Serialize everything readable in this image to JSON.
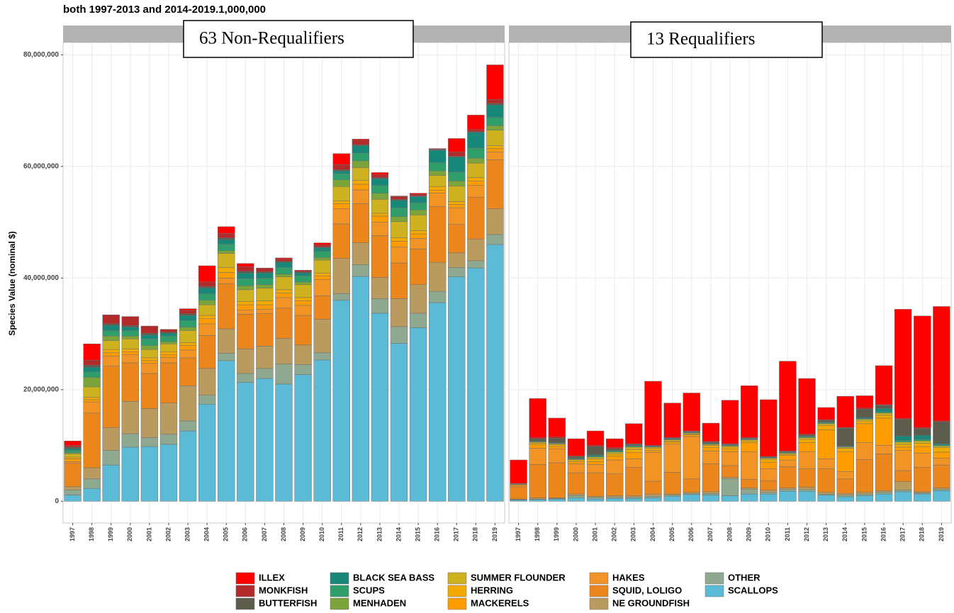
{
  "chart_data": {
    "type": "bar",
    "stacked": true,
    "title": "both 1997-2013 and 2014-2019.1,000,000",
    "y_label": "Species Value (nominal $)",
    "panels": [
      "63 Non-Requalifiers",
      "13 Requalifiers"
    ],
    "categories": [
      "1997",
      "1998",
      "1999",
      "2000",
      "2001",
      "2002",
      "2003",
      "2004",
      "2005",
      "2006",
      "2007",
      "2008",
      "2009",
      "2010",
      "2011",
      "2012",
      "2013",
      "2014",
      "2015",
      "2016",
      "2017",
      "2018",
      "2019"
    ],
    "ylim": [
      -3900000,
      82200000
    ],
    "yticks": [
      0,
      {
        "value": 20000000,
        "label": "20,000,000"
      },
      {
        "value": 40000000,
        "label": "40,000,000"
      },
      {
        "value": 60000000,
        "label": "60,000,000"
      },
      {
        "value": 80000000,
        "label": "80,000,000"
      }
    ],
    "grid": true,
    "legend": "bottom",
    "series": [
      {
        "name": "ILLEX",
        "color": "#ff0000",
        "values": [
          [
            800000,
            2900000,
            0,
            0,
            0,
            0,
            300000,
            2900000,
            1200000,
            600000,
            0,
            200000,
            0,
            400000,
            2000000,
            200000,
            400000,
            100000,
            200000,
            100000,
            2400000,
            2600000,
            6200000
          ],
          [
            4200000,
            7000000,
            3400000,
            3100000,
            2600000,
            1600000,
            3600000,
            11500000,
            6200000,
            6800000,
            3300000,
            7800000,
            9300000,
            10200000,
            16100000,
            10000000,
            2200000,
            5600000,
            2200000,
            7000000,
            19600000,
            20000000,
            20500000
          ]
        ]
      },
      {
        "name": "MONKFISH",
        "color": "#b22a2a",
        "values": [
          [
            300000,
            900000,
            1600000,
            1600000,
            1300000,
            500000,
            600000,
            800000,
            800000,
            800000,
            700000,
            400000,
            300000,
            300000,
            900000,
            800000,
            500000,
            500000,
            300000,
            100000,
            800000,
            400000,
            700000
          ],
          [
            0,
            200000,
            200000,
            100000,
            200000,
            200000,
            100000,
            0,
            100000,
            100000,
            100000,
            100000,
            100000,
            0,
            100000,
            100000,
            100000,
            100000,
            200000,
            100000,
            100000,
            200000,
            200000
          ]
        ]
      },
      {
        "name": "BUTTERFISH",
        "color": "#5c5c4c",
        "values": [
          [
            300000,
            400000,
            300000,
            300000,
            300000,
            200000,
            300000,
            300000,
            300000,
            300000,
            200000,
            200000,
            200000,
            200000,
            200000,
            200000,
            200000,
            200000,
            100000,
            100000,
            100000,
            100000,
            300000
          ],
          [
            100000,
            400000,
            800000,
            300000,
            1500000,
            300000,
            200000,
            100000,
            100000,
            100000,
            200000,
            100000,
            100000,
            100000,
            100000,
            200000,
            300000,
            3200000,
            1500000,
            600000,
            3000000,
            1200000,
            3900000
          ]
        ]
      },
      {
        "name": "BLACK SEA BASS",
        "color": "#17877a",
        "values": [
          [
            300000,
            800000,
            900000,
            600000,
            700000,
            500000,
            900000,
            1000000,
            800000,
            1000000,
            900000,
            900000,
            500000,
            600000,
            500000,
            1300000,
            1200000,
            1300000,
            1100000,
            2200000,
            2700000,
            2800000,
            2200000
          ],
          [
            0,
            100000,
            100000,
            100000,
            200000,
            100000,
            100000,
            100000,
            100000,
            100000,
            100000,
            100000,
            100000,
            100000,
            100000,
            100000,
            100000,
            100000,
            200000,
            600000,
            800000,
            700000,
            200000
          ]
        ]
      },
      {
        "name": "SCUPS",
        "color": "#2f9e6a",
        "values": [
          [
            400000,
            1000000,
            1000000,
            1000000,
            1200000,
            1000000,
            1200000,
            1200000,
            1200000,
            1300000,
            1200000,
            1200000,
            1100000,
            1100000,
            1100000,
            1400000,
            1400000,
            1600000,
            1300000,
            1500000,
            1600000,
            1800000,
            1500000
          ],
          [
            0,
            100000,
            100000,
            100000,
            200000,
            200000,
            200000,
            100000,
            100000,
            100000,
            100000,
            100000,
            100000,
            100000,
            100000,
            200000,
            200000,
            100000,
            100000,
            200000,
            300000,
            300000,
            200000
          ]
        ]
      },
      {
        "name": "MENHADEN",
        "color": "#7ba43a",
        "values": [
          [
            200000,
            1700000,
            800000,
            500000,
            700000,
            400000,
            600000,
            800000,
            500000,
            700000,
            600000,
            500000,
            500000,
            500000,
            1200000,
            1200000,
            1100000,
            900000,
            900000,
            800000,
            900000,
            900000,
            800000
          ],
          [
            0,
            0,
            0,
            0,
            0,
            0,
            0,
            0,
            0,
            0,
            0,
            0,
            0,
            0,
            0,
            0,
            0,
            0,
            0,
            0,
            0,
            0,
            0
          ]
        ]
      },
      {
        "name": "SUMMER FLOUNDER",
        "color": "#cdb11f",
        "values": [
          [
            600000,
            1900000,
            1600000,
            1800000,
            1500000,
            1400000,
            2200000,
            1900000,
            2500000,
            2100000,
            2300000,
            2300000,
            2300000,
            2300000,
            2600000,
            2300000,
            2500000,
            2900000,
            2800000,
            2000000,
            2800000,
            2600000,
            2800000
          ],
          [
            0,
            200000,
            200000,
            100000,
            300000,
            300000,
            400000,
            200000,
            200000,
            200000,
            200000,
            200000,
            200000,
            200000,
            200000,
            300000,
            300000,
            200000,
            300000,
            400000,
            400000,
            400000,
            300000
          ]
        ]
      },
      {
        "name": "HERRING",
        "color": "#f2a900",
        "values": [
          [
            300000,
            400000,
            600000,
            500000,
            500000,
            500000,
            500000,
            600000,
            900000,
            600000,
            700000,
            600000,
            600000,
            500000,
            500000,
            700000,
            500000,
            600000,
            600000,
            700000,
            500000,
            600000,
            500000
          ],
          [
            100000,
            300000,
            300000,
            300000,
            500000,
            400000,
            600000,
            400000,
            200000,
            100000,
            400000,
            300000,
            300000,
            500000,
            200000,
            600000,
            800000,
            600000,
            500000,
            500000,
            500000,
            600000,
            800000
          ]
        ]
      },
      {
        "name": "MACKERELS",
        "color": "#ff9d00",
        "values": [
          [
            500000,
            400000,
            600000,
            500000,
            500000,
            500000,
            800000,
            900000,
            1000000,
            900000,
            800000,
            800000,
            800000,
            700000,
            900000,
            1000000,
            1100000,
            1000000,
            800000,
            500000,
            600000,
            800000,
            600000
          ],
          [
            100000,
            600000,
            400000,
            400000,
            500000,
            700000,
            1100000,
            300000,
            300000,
            300000,
            600000,
            500000,
            1600000,
            1200000,
            800000,
            1600000,
            5200000,
            3600000,
            3400000,
            4900000,
            600000,
            1200000,
            1100000
          ]
        ]
      },
      {
        "name": "HAKES",
        "color": "#f29425",
        "values": [
          [
            300000,
            2000000,
            1800000,
            1500000,
            1800000,
            1000000,
            1400000,
            2100000,
            1000000,
            800000,
            800000,
            1900000,
            1800000,
            2900000,
            2700000,
            2500000,
            2400000,
            2900000,
            1900000,
            2400000,
            3000000,
            2100000,
            1400000
          ],
          [
            300000,
            2900000,
            2500000,
            1600000,
            1500000,
            2500000,
            1500000,
            5200000,
            5100000,
            7600000,
            2300000,
            2500000,
            5000000,
            2100000,
            1200000,
            3100000,
            1800000,
            1300000,
            3000000,
            1500000,
            3600000,
            2500000,
            1200000
          ]
        ]
      },
      {
        "name": "SQUID, LOLIGO",
        "color": "#ea861b",
        "values": [
          [
            4200000,
            9800000,
            11000000,
            6900000,
            6300000,
            7200000,
            5000000,
            5900000,
            8100000,
            6200000,
            5800000,
            5400000,
            5300000,
            4200000,
            6200000,
            7000000,
            7500000,
            6400000,
            6400000,
            10000000,
            5100000,
            7500000,
            8800000
          ],
          [
            2200000,
            6000000,
            6300000,
            3800000,
            4200000,
            3900000,
            5100000,
            2300000,
            3900000,
            2400000,
            5000000,
            2100000,
            1500000,
            1700000,
            3800000,
            3300000,
            4200000,
            2600000,
            5900000,
            6600000,
            2000000,
            4400000,
            4100000
          ]
        ]
      },
      {
        "name": "NE GROUNDFISH",
        "color": "#b99b5f",
        "values": [
          [
            600000,
            2000000,
            4100000,
            5800000,
            5200000,
            5600000,
            6300000,
            4800000,
            4400000,
            4400000,
            4000000,
            4600000,
            3500000,
            6000000,
            6300000,
            3900000,
            3800000,
            5000000,
            5100000,
            5200000,
            2600000,
            3900000,
            4600000
          ],
          [
            100000,
            200000,
            100000,
            300000,
            200000,
            300000,
            300000,
            400000,
            200000,
            200000,
            300000,
            300000,
            300000,
            400000,
            300000,
            400000,
            300000,
            300000,
            300000,
            300000,
            1500000,
            200000,
            300000
          ]
        ]
      },
      {
        "name": "OTHER",
        "color": "#8fa890",
        "values": [
          [
            900000,
            1700000,
            2600000,
            2400000,
            1600000,
            1800000,
            1800000,
            1600000,
            1300000,
            1600000,
            1800000,
            3600000,
            1800000,
            1300000,
            1200000,
            2100000,
            2600000,
            3000000,
            2600000,
            2000000,
            1700000,
            1300000,
            1800000
          ],
          [
            100000,
            100000,
            100000,
            400000,
            300000,
            200000,
            200000,
            300000,
            200000,
            200000,
            300000,
            3000000,
            800000,
            300000,
            300000,
            300000,
            200000,
            300000,
            300000,
            300000,
            300000,
            200000,
            200000
          ]
        ]
      },
      {
        "name": "SCALLOPS",
        "color": "#5bbbd7",
        "values": [
          [
            1100000,
            2300000,
            6500000,
            9700000,
            9800000,
            10200000,
            12600000,
            17400000,
            25200000,
            21300000,
            22000000,
            21000000,
            22700000,
            25300000,
            36000000,
            40300000,
            33700000,
            28300000,
            31100000,
            35600000,
            40200000,
            41800000,
            46000000
          ],
          [
            200000,
            300000,
            400000,
            600000,
            400000,
            500000,
            500000,
            600000,
            900000,
            1200000,
            1100000,
            1000000,
            1300000,
            1300000,
            1800000,
            1800000,
            1100000,
            800000,
            1000000,
            1300000,
            1700000,
            1300000,
            1900000
          ]
        ]
      }
    ]
  }
}
